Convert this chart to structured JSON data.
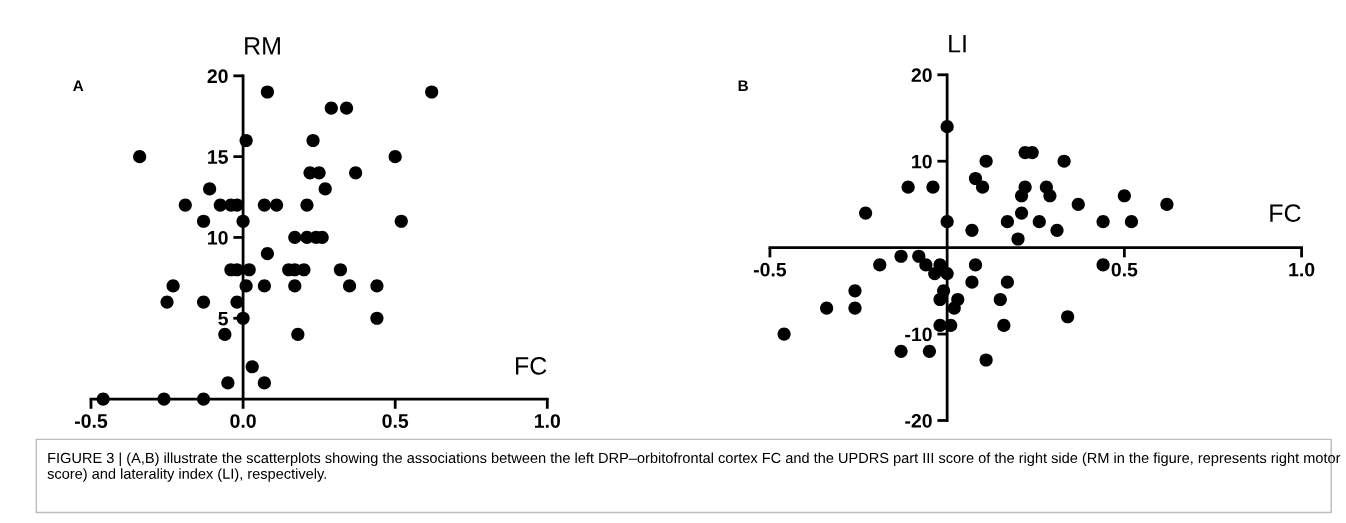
{
  "chart_data": [
    {
      "type": "scatter",
      "title": "A",
      "xlabel": "FC",
      "ylabel": "RM",
      "color": "#000000",
      "marker": "circle",
      "grid": false,
      "xlim": [
        -0.5,
        1.0
      ],
      "ylim": [
        0,
        20
      ],
      "xticks": [
        {
          "value": -0.5,
          "label": "-0.5"
        },
        {
          "value": 0,
          "label": "0.0"
        },
        {
          "value": 0.5,
          "label": "0.5"
        },
        {
          "value": 1.0,
          "label": "1.0"
        }
      ],
      "yticks": [
        5,
        10,
        15,
        20
      ],
      "x": [
        0.08,
        0.01,
        -0.34,
        -0.11,
        -0.19,
        -0.075,
        -0.04,
        -0.02,
        0.07,
        0.11,
        -0.13,
        0.0,
        0.17,
        0.21,
        0.24,
        0.26,
        0.08,
        -0.04,
        -0.02,
        0.02,
        0.15,
        0.17,
        0.2,
        0.32,
        -0.23,
        0.01,
        0.07,
        0.17,
        -0.25,
        -0.13,
        -0.02,
        0.0,
        -0.06,
        0.18,
        0.03,
        -0.05,
        0.07,
        -0.46,
        -0.26,
        -0.13,
        0.23,
        0.22,
        0.25,
        0.27,
        0.21,
        0.62,
        0.29,
        0.34,
        0.5,
        0.37,
        0.52,
        0.35,
        0.44,
        0.44
      ],
      "values": [
        19,
        16,
        15,
        13,
        12,
        12,
        12,
        12,
        12,
        12,
        11,
        11,
        10,
        10,
        10,
        10,
        9,
        8,
        8,
        8,
        8,
        8,
        8,
        8,
        7,
        7,
        7,
        7,
        6,
        6,
        6,
        5,
        4,
        4,
        2,
        1,
        1,
        0,
        0,
        0,
        16,
        14,
        14,
        13,
        12,
        19,
        18,
        18,
        15,
        14,
        11,
        7,
        7,
        5
      ]
    },
    {
      "type": "scatter",
      "title": "B",
      "xlabel": "FC",
      "ylabel": "LI",
      "color": "#000000",
      "marker": "circle",
      "grid": false,
      "xlim": [
        -0.5,
        1.0
      ],
      "ylim": [
        -20,
        20
      ],
      "xticks": [
        {
          "value": -0.5,
          "label": "-0.5"
        },
        {
          "value": 0.5,
          "label": "0.5"
        },
        {
          "value": 1.0,
          "label": "1.0"
        }
      ],
      "yticks": [
        -20,
        -10,
        10,
        20
      ],
      "x": [
        0.0,
        0.11,
        -0.11,
        -0.04,
        0.08,
        0.1,
        -0.23,
        0.0,
        0.07,
        -0.13,
        -0.19,
        -0.08,
        -0.06,
        -0.02,
        -0.035,
        0.0,
        0.08,
        0.07,
        -0.01,
        -0.02,
        0.03,
        0.02,
        -0.02,
        0.01,
        -0.26,
        -0.34,
        -0.26,
        -0.46,
        -0.13,
        -0.05,
        0.11,
        0.22,
        0.24,
        0.33,
        0.22,
        0.21,
        0.28,
        0.29,
        0.37,
        0.5,
        0.62,
        0.21,
        0.17,
        0.26,
        0.31,
        0.44,
        0.52,
        0.2,
        0.44,
        0.17,
        0.15,
        0.16,
        0.34
      ],
      "values": [
        14,
        10,
        7,
        7,
        8,
        7,
        4,
        3,
        2,
        -1,
        -2,
        -1,
        -2,
        -2,
        -3,
        -3,
        -2,
        -4,
        -5,
        -6,
        -6,
        -7,
        -9,
        -9,
        -5,
        -7,
        -7,
        -10,
        -12,
        -12,
        -13,
        11,
        11,
        10,
        7,
        6,
        7,
        6,
        5,
        6,
        5,
        4,
        3,
        3,
        2,
        3,
        3,
        1,
        -2,
        -4,
        -6,
        -9,
        -8
      ],
      "annotations": [
        "FIGURE 3 | (A,B) illustrate the scatterplots showing the associations between the left DRP–orbitofrontal cortex FC and the UPDRS part III score of the right side (RM in the figure, represents right motor score) and laterality index (LI), respectively."
      ]
    }
  ]
}
